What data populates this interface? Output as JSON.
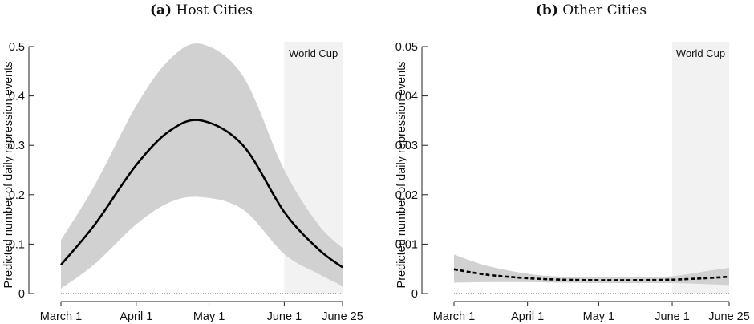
{
  "chart_data": [
    {
      "type": "line",
      "panel_tag": "(a)",
      "title": "Host Cities",
      "ylabel": "Predicted number of daily repression events",
      "xlabel": "",
      "ylim": [
        0,
        0.5
      ],
      "yticks": [
        0,
        0.1,
        0.2,
        0.3,
        0.4,
        0.5
      ],
      "ytick_labels": [
        "0",
        "0.1",
        "0.2",
        "0.3",
        "0.4",
        "0.5"
      ],
      "xlim": [
        "2014-03-01",
        "2014-06-25"
      ],
      "xticks": [
        "2014-03-01",
        "2014-04-01",
        "2014-05-01",
        "2014-06-01",
        "2014-06-25"
      ],
      "xtick_labels": [
        "March 1",
        "April 1",
        "May 1",
        "June 1",
        "June 25"
      ],
      "shaded_region": {
        "label": "World Cup",
        "from": "2014-06-01",
        "to": "2014-06-25",
        "color": "#f2f2f2"
      },
      "series": [
        {
          "line_style": "solid",
          "color": "#000000",
          "band_color": "#d0d1d0",
          "x": [
            "2014-03-01",
            "2014-03-15",
            "2014-04-01",
            "2014-04-15",
            "2014-04-28",
            "2014-05-15",
            "2014-06-01",
            "2014-06-15",
            "2014-06-25"
          ],
          "y": [
            0.058,
            0.14,
            0.26,
            0.33,
            0.35,
            0.3,
            0.165,
            0.09,
            0.053
          ],
          "lower": [
            0.01,
            0.06,
            0.14,
            0.185,
            0.195,
            0.17,
            0.08,
            0.04,
            0.015
          ],
          "upper": [
            0.108,
            0.22,
            0.38,
            0.475,
            0.505,
            0.44,
            0.25,
            0.14,
            0.092
          ]
        }
      ]
    },
    {
      "type": "line",
      "panel_tag": "(b)",
      "title": "Other Cities",
      "ylabel": "Predicted number of daily repression events",
      "xlabel": "",
      "ylim": [
        0,
        0.05
      ],
      "yticks": [
        0,
        0.01,
        0.02,
        0.03,
        0.04,
        0.05
      ],
      "ytick_labels": [
        "0",
        "0.01",
        "0.02",
        "0.03",
        "0.04",
        "0.05"
      ],
      "xlim": [
        "2014-03-01",
        "2014-06-25"
      ],
      "xticks": [
        "2014-03-01",
        "2014-04-01",
        "2014-05-01",
        "2014-06-01",
        "2014-06-25"
      ],
      "xtick_labels": [
        "March 1",
        "April 1",
        "May 1",
        "June 1",
        "June 25"
      ],
      "shaded_region": {
        "label": "World Cup",
        "from": "2014-06-01",
        "to": "2014-06-25",
        "color": "#f2f2f2"
      },
      "series": [
        {
          "line_style": "dashed",
          "color": "#000000",
          "band_color": "#d0d1d0",
          "x": [
            "2014-03-01",
            "2014-03-15",
            "2014-04-01",
            "2014-04-15",
            "2014-05-01",
            "2014-05-15",
            "2014-06-01",
            "2014-06-15",
            "2014-06-25"
          ],
          "y": [
            0.0049,
            0.0038,
            0.0031,
            0.0028,
            0.0027,
            0.0027,
            0.0028,
            0.0031,
            0.0034
          ],
          "lower": [
            0.0022,
            0.0023,
            0.0023,
            0.0022,
            0.0021,
            0.0021,
            0.0021,
            0.0019,
            0.0017
          ],
          "upper": [
            0.0079,
            0.0056,
            0.004,
            0.0034,
            0.0033,
            0.0033,
            0.0035,
            0.0045,
            0.0052
          ]
        }
      ]
    }
  ]
}
